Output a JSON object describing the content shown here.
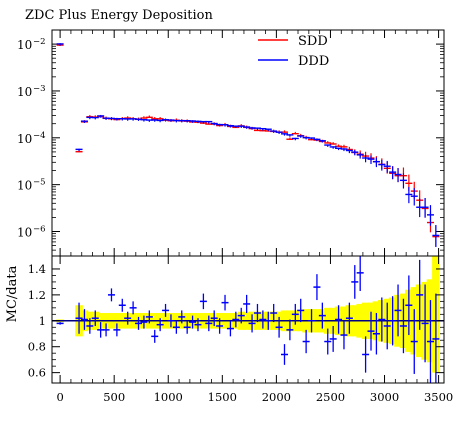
{
  "chart_data": [
    {
      "type": "scatter",
      "title": "ZDC Plus Energy Deposition",
      "xlabel": "",
      "ylabel": "",
      "yscale": "log",
      "xlim": [
        -75,
        3550
      ],
      "ylim": [
        3e-07,
        0.02
      ],
      "y_ticks": [
        {
          "value": 0.01,
          "base": "10",
          "exp": "−2"
        },
        {
          "value": 0.001,
          "base": "10",
          "exp": "−3"
        },
        {
          "value": 0.0001,
          "base": "10",
          "exp": "−4"
        },
        {
          "value": 1e-05,
          "base": "10",
          "exp": "−5"
        },
        {
          "value": 1e-06,
          "base": "10",
          "exp": "−6"
        }
      ],
      "legend_position": "top-center",
      "x": [
        0,
        175,
        225,
        275,
        325,
        375,
        425,
        475,
        525,
        575,
        625,
        675,
        725,
        775,
        825,
        875,
        925,
        975,
        1025,
        1075,
        1125,
        1175,
        1225,
        1275,
        1325,
        1375,
        1425,
        1475,
        1525,
        1575,
        1625,
        1675,
        1725,
        1775,
        1825,
        1875,
        1925,
        1975,
        2025,
        2075,
        2125,
        2175,
        2225,
        2275,
        2325,
        2375,
        2425,
        2475,
        2525,
        2575,
        2625,
        2675,
        2725,
        2775,
        2825,
        2875,
        2925,
        2975,
        3025,
        3075,
        3125,
        3175,
        3225,
        3275,
        3325,
        3375,
        3425,
        3475
      ],
      "series": [
        {
          "name": "SDD",
          "color": "#ff0000",
          "values": [
            0.0098,
            5.2e-05,
            0.000225,
            0.00029,
            0.000285,
            0.00029,
            0.000268,
            0.000262,
            0.000252,
            0.000262,
            0.000272,
            0.000262,
            0.000255,
            0.000272,
            0.000282,
            0.000262,
            0.000262,
            0.000245,
            0.000238,
            0.000244,
            0.000236,
            0.000233,
            0.000224,
            0.000222,
            0.000212,
            0.000202,
            0.000202,
            0.000188,
            0.000196,
            0.00018,
            0.000172,
            0.000185,
            0.000172,
            0.000162,
            0.000148,
            0.000146,
            0.000144,
            0.000141,
            0.000136,
            0.000136,
            9.6e-05,
            0.000126,
            0.000114,
            0.000104,
            9.4e-05,
            9.2e-05,
            8.6e-05,
            8e-05,
            7.6e-05,
            6.8e-05,
            6.6e-05,
            5.8e-05,
            5e-05,
            4.6e-05,
            4.2e-05,
            3.8e-05,
            3.2e-05,
            2.8e-05,
            2.3e-05,
            1.8e-05,
            1.6e-05,
            1.6e-05,
            1.1e-05,
            7.5e-06,
            4.8e-06,
            3.2e-06,
            1.6e-06,
            8e-07
          ]
        },
        {
          "name": "DDD",
          "color": "#0000ff",
          "values": [
            0.0098,
            5.5e-05,
            0.00022,
            0.000265,
            0.000262,
            0.000285,
            0.000255,
            0.000252,
            0.000248,
            0.000248,
            0.000245,
            0.000246,
            0.000243,
            0.000236,
            0.000232,
            0.000233,
            0.000228,
            0.000236,
            0.000232,
            0.000226,
            0.000226,
            0.000225,
            0.000222,
            0.000218,
            0.000215,
            0.000215,
            0.000196,
            0.000186,
            0.000184,
            0.000176,
            0.000172,
            0.000172,
            0.000165,
            0.000158,
            0.000156,
            0.000152,
            0.000148,
            0.000135,
            0.000128,
            0.000118,
            0.000112,
            9.4e-05,
            0.000106,
            9.8e-05,
            9.6e-05,
            9e-05,
            8.4e-05,
            6.8e-05,
            6.2e-05,
            5.8e-05,
            5.6e-05,
            5.2e-05,
            4.8e-05,
            4.2e-05,
            3.6e-05,
            3.4e-05,
            3e-05,
            2.6e-05,
            2.4e-05,
            1.8e-05,
            1.6e-05,
            1.2e-05,
            6e-06,
            5.5e-06,
            3.2e-06,
            3.2e-06,
            2.2e-06,
            8e-07
          ]
        }
      ]
    },
    {
      "type": "scatter",
      "title": "",
      "xlabel": "",
      "ylabel": "MC/data",
      "xlim": [
        -75,
        3550
      ],
      "ylim": [
        0.52,
        1.5
      ],
      "x_ticks": [
        0,
        500,
        1000,
        1500,
        2000,
        2500,
        3000,
        3500
      ],
      "y_ticks": [
        0.6,
        0.8,
        1,
        1.2,
        1.4
      ],
      "reference_line": 1,
      "band_color": "#ffff00",
      "band_lower": [
        0.99,
        0.88,
        0.92,
        0.93,
        0.93,
        0.94,
        0.94,
        0.94,
        0.94,
        0.94,
        0.94,
        0.94,
        0.94,
        0.94,
        0.94,
        0.94,
        0.94,
        0.94,
        0.94,
        0.94,
        0.94,
        0.94,
        0.94,
        0.94,
        0.94,
        0.94,
        0.94,
        0.94,
        0.94,
        0.94,
        0.94,
        0.93,
        0.93,
        0.93,
        0.93,
        0.93,
        0.93,
        0.93,
        0.93,
        0.92,
        0.92,
        0.92,
        0.92,
        0.91,
        0.91,
        0.91,
        0.91,
        0.9,
        0.9,
        0.89,
        0.89,
        0.88,
        0.88,
        0.87,
        0.86,
        0.86,
        0.85,
        0.84,
        0.83,
        0.82,
        0.8,
        0.79,
        0.76,
        0.74,
        0.72,
        0.7,
        0.68,
        0.6
      ],
      "band_upper": [
        1.01,
        1.12,
        1.08,
        1.07,
        1.07,
        1.06,
        1.06,
        1.06,
        1.06,
        1.06,
        1.06,
        1.06,
        1.06,
        1.06,
        1.06,
        1.06,
        1.06,
        1.06,
        1.06,
        1.06,
        1.06,
        1.06,
        1.06,
        1.06,
        1.06,
        1.06,
        1.06,
        1.06,
        1.06,
        1.06,
        1.06,
        1.07,
        1.07,
        1.07,
        1.07,
        1.07,
        1.07,
        1.07,
        1.07,
        1.08,
        1.08,
        1.08,
        1.08,
        1.09,
        1.09,
        1.09,
        1.09,
        1.1,
        1.1,
        1.11,
        1.11,
        1.12,
        1.12,
        1.13,
        1.14,
        1.14,
        1.15,
        1.16,
        1.17,
        1.18,
        1.2,
        1.21,
        1.24,
        1.26,
        1.28,
        1.3,
        1.32,
        1.5
      ],
      "series": [
        {
          "name": "MC/data",
          "color": "#0000ff",
          "values": [
            0.98,
            1.02,
            1.01,
            0.96,
            1.02,
            0.93,
            0.93,
            1.2,
            0.93,
            1.12,
            1.02,
            1.1,
            0.98,
            0.99,
            1.03,
            0.88,
            0.97,
            1.08,
            1.0,
            0.95,
            1.03,
            0.95,
            0.99,
            0.97,
            1.15,
            0.98,
            1.02,
            0.96,
            1.14,
            0.94,
            1.01,
            1.04,
            1.13,
            0.98,
            1.06,
            1.01,
            1.0,
            1.06,
            0.95,
            0.74,
            0.93,
            1.05,
            1.08,
            0.84,
            1.0,
            1.26,
            1.04,
            0.84,
            0.86,
            1.01,
            0.89,
            1.02,
            1.3,
            1.37,
            0.74,
            0.92,
            0.9,
            1.01,
            0.96,
            1.0,
            1.08,
            0.96,
            1.12,
            0.84,
            1.2,
            0.98,
            0.84,
            0.86
          ],
          "errors": [
            0.01,
            0.12,
            0.08,
            0.06,
            0.06,
            0.06,
            0.05,
            0.05,
            0.05,
            0.05,
            0.05,
            0.05,
            0.05,
            0.05,
            0.05,
            0.05,
            0.05,
            0.05,
            0.05,
            0.05,
            0.05,
            0.05,
            0.05,
            0.05,
            0.06,
            0.06,
            0.06,
            0.06,
            0.06,
            0.06,
            0.06,
            0.06,
            0.07,
            0.07,
            0.07,
            0.07,
            0.07,
            0.07,
            0.08,
            0.08,
            0.08,
            0.08,
            0.09,
            0.09,
            0.09,
            0.1,
            0.1,
            0.1,
            0.1,
            0.11,
            0.11,
            0.12,
            0.13,
            0.14,
            0.14,
            0.15,
            0.16,
            0.17,
            0.18,
            0.19,
            0.2,
            0.21,
            0.23,
            0.25,
            0.27,
            0.3,
            0.32,
            0.35
          ]
        }
      ]
    }
  ]
}
